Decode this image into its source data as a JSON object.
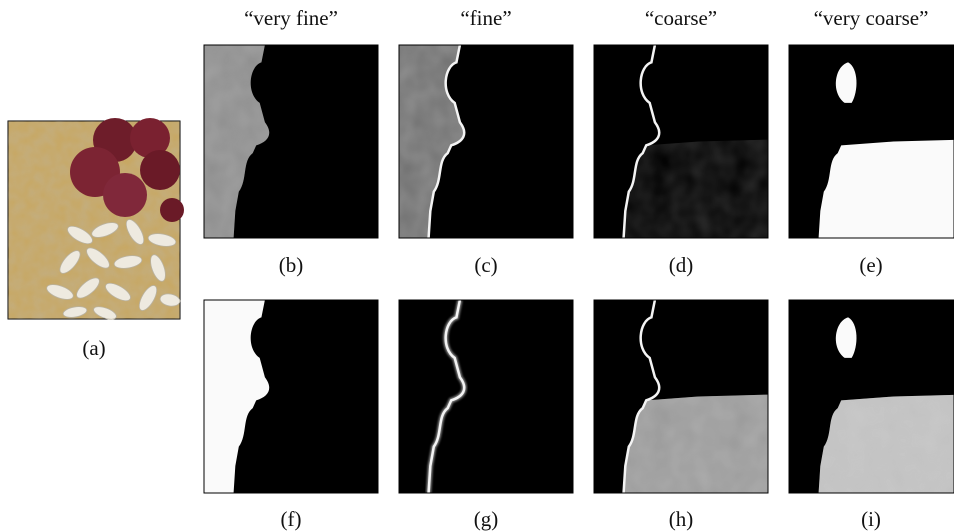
{
  "column_headers": [
    "“very fine”",
    "“fine”",
    "“coarse”",
    "“very coarse”"
  ],
  "captions": [
    "(a)",
    "(b)",
    "(c)",
    "(d)",
    "(e)",
    "(f)",
    "(g)",
    "(h)",
    "(i)"
  ]
}
